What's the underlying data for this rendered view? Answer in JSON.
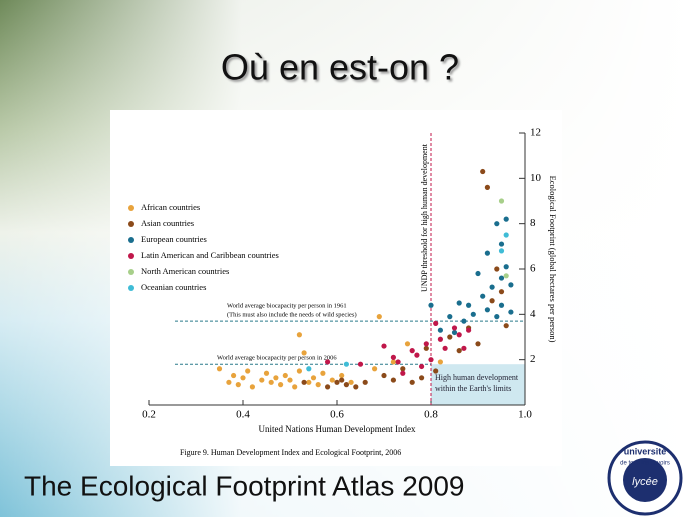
{
  "slide": {
    "title": "Où en est-on ?",
    "footer": "The Ecological Footprint Atlas 2009",
    "logo": [
      "université",
      "de tous les savoirs",
      "lycée"
    ]
  },
  "chart_data": {
    "type": "scatter",
    "caption": "Figure 9.  Human Development Index and Ecological Footprint, 2006",
    "x_label": "United Nations Human Development Index",
    "y_label": "Ecological Footprint (global hectares per person)",
    "xlim": [
      0.2,
      1.0
    ],
    "xticks": [
      0.2,
      0.4,
      0.6,
      0.8,
      {
        "value": 1.0,
        "label": "1.0"
      }
    ],
    "ylim": [
      0,
      12
    ],
    "yticks": [
      2,
      4,
      6,
      8,
      10,
      12
    ],
    "threshold": {
      "x": 0.8,
      "text": "UNDP threshold for high human development"
    },
    "reference_lines": [
      {
        "y": 3.7,
        "text": [
          "World average biocapacity per person in 1961",
          "(This must also include the needs of wild species)"
        ]
      },
      {
        "y": 1.8,
        "text": [
          "World average biocapacity per person in 2006"
        ]
      }
    ],
    "zone_text": [
      "High human development",
      "within the Earth's limits"
    ],
    "series": [
      {
        "name": "African countries",
        "color": "#e8a33c",
        "x": [
          0.35,
          0.37,
          0.38,
          0.39,
          0.4,
          0.41,
          0.42,
          0.44,
          0.45,
          0.46,
          0.47,
          0.48,
          0.49,
          0.5,
          0.51,
          0.52,
          0.52,
          0.53,
          0.54,
          0.55,
          0.56,
          0.57,
          0.59,
          0.61,
          0.63,
          0.68,
          0.69,
          0.72,
          0.75,
          0.82
        ],
        "values": [
          1.6,
          1.0,
          1.3,
          0.9,
          1.2,
          1.5,
          0.8,
          1.1,
          1.4,
          1.0,
          1.2,
          0.9,
          1.3,
          1.1,
          0.8,
          3.1,
          1.5,
          2.3,
          1.0,
          1.2,
          0.9,
          1.4,
          1.1,
          1.3,
          1.0,
          1.6,
          3.9,
          1.9,
          2.7,
          1.9
        ]
      },
      {
        "name": "Asian countries",
        "color": "#8b4a1a",
        "x": [
          0.53,
          0.58,
          0.6,
          0.61,
          0.62,
          0.64,
          0.66,
          0.7,
          0.72,
          0.74,
          0.76,
          0.78,
          0.79,
          0.81,
          0.84,
          0.86,
          0.88,
          0.9,
          0.91,
          0.92,
          0.93,
          0.94,
          0.95,
          0.96
        ],
        "values": [
          1.0,
          0.8,
          1.0,
          1.1,
          0.9,
          0.8,
          1.0,
          1.3,
          1.1,
          1.6,
          1.0,
          1.2,
          2.5,
          1.5,
          3.0,
          2.4,
          3.4,
          2.7,
          10.3,
          9.6,
          4.6,
          6.0,
          5.0,
          3.5
        ]
      },
      {
        "name": "European countries",
        "color": "#1a6e8e",
        "x": [
          0.8,
          0.82,
          0.84,
          0.85,
          0.86,
          0.87,
          0.88,
          0.89,
          0.9,
          0.91,
          0.92,
          0.92,
          0.93,
          0.94,
          0.94,
          0.95,
          0.95,
          0.96,
          0.96,
          0.97,
          0.97,
          0.95
        ],
        "values": [
          4.4,
          3.3,
          3.9,
          3.2,
          4.5,
          3.7,
          4.4,
          4.0,
          5.8,
          4.8,
          4.2,
          6.7,
          5.2,
          3.9,
          8.0,
          5.6,
          4.4,
          6.1,
          8.2,
          4.1,
          5.3,
          7.1
        ]
      },
      {
        "name": "Latin American and Caribbean countries",
        "color": "#c0174a",
        "x": [
          0.58,
          0.65,
          0.7,
          0.72,
          0.73,
          0.74,
          0.76,
          0.77,
          0.78,
          0.79,
          0.8,
          0.81,
          0.82,
          0.83,
          0.85,
          0.86,
          0.87,
          0.88
        ],
        "values": [
          1.9,
          1.8,
          2.6,
          2.1,
          1.9,
          1.4,
          2.4,
          2.2,
          1.7,
          2.7,
          2.0,
          3.6,
          2.9,
          2.5,
          3.4,
          3.1,
          2.5,
          3.3
        ]
      },
      {
        "name": "North American countries",
        "color": "#a7cf8a",
        "x": [
          0.95,
          0.96
        ],
        "values": [
          9.0,
          5.7
        ]
      },
      {
        "name": "Oceanian countries",
        "color": "#3fbcd6",
        "x": [
          0.54,
          0.62,
          0.96,
          0.95
        ],
        "values": [
          1.6,
          1.8,
          7.5,
          6.8
        ]
      }
    ]
  }
}
